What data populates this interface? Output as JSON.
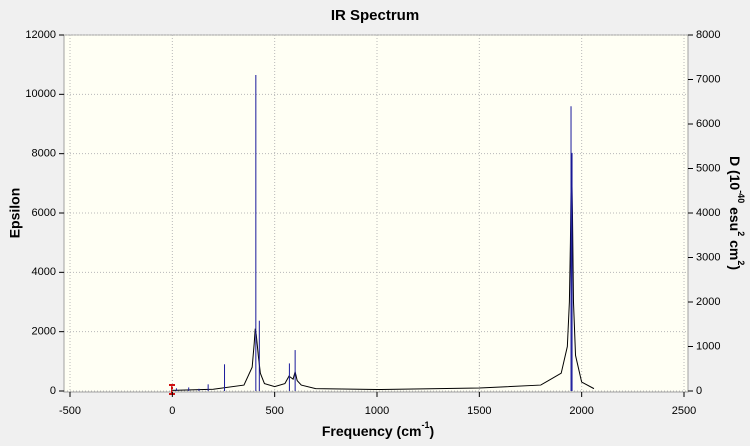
{
  "chart_data": {
    "type": "line",
    "title": "IR Spectrum",
    "x_label": [
      "Frequency (cm",
      "-1",
      ")"
    ],
    "y_label": "Epsilon",
    "y2_label": [
      "D (10",
      "-40",
      " esu",
      "2",
      " cm",
      "2",
      ")"
    ],
    "xlim": [
      -500,
      2500
    ],
    "xticks": [
      -500,
      0,
      500,
      1000,
      1500,
      2000,
      2500
    ],
    "ylim": [
      0,
      12000
    ],
    "yticks": [
      0,
      2000,
      4000,
      6000,
      8000,
      10000,
      12000
    ],
    "y2lim": [
      0,
      8000
    ],
    "y2ticks": [
      0,
      1000,
      2000,
      3000,
      4000,
      5000,
      6000,
      7000,
      8000
    ],
    "grid": true,
    "series": [
      {
        "color": "#000000",
        "x": [
          0,
          200,
          350,
          390,
          400,
          405,
          410,
          420,
          430,
          450,
          500,
          550,
          570,
          580,
          590,
          600,
          610,
          630,
          700,
          1000,
          1500,
          1800,
          1900,
          1930,
          1940,
          1945,
          1950,
          1955,
          1960,
          1970,
          2000,
          2060
        ],
        "values": [
          20,
          60,
          200,
          800,
          1600,
          2100,
          1900,
          1200,
          600,
          250,
          150,
          250,
          500,
          450,
          400,
          650,
          350,
          200,
          80,
          50,
          100,
          200,
          600,
          1500,
          3000,
          5000,
          8000,
          6000,
          3000,
          1200,
          300,
          80
        ]
      },
      {
        "color": "#1a1a9c",
        "axis": "y2",
        "sticks": true,
        "x": [
          20,
          80,
          130,
          175,
          255,
          408,
          425,
          572,
          600,
          1948,
          1953
        ],
        "values": [
          60,
          80,
          50,
          150,
          600,
          7100,
          1580,
          620,
          920,
          6400,
          5350
        ]
      }
    ]
  }
}
